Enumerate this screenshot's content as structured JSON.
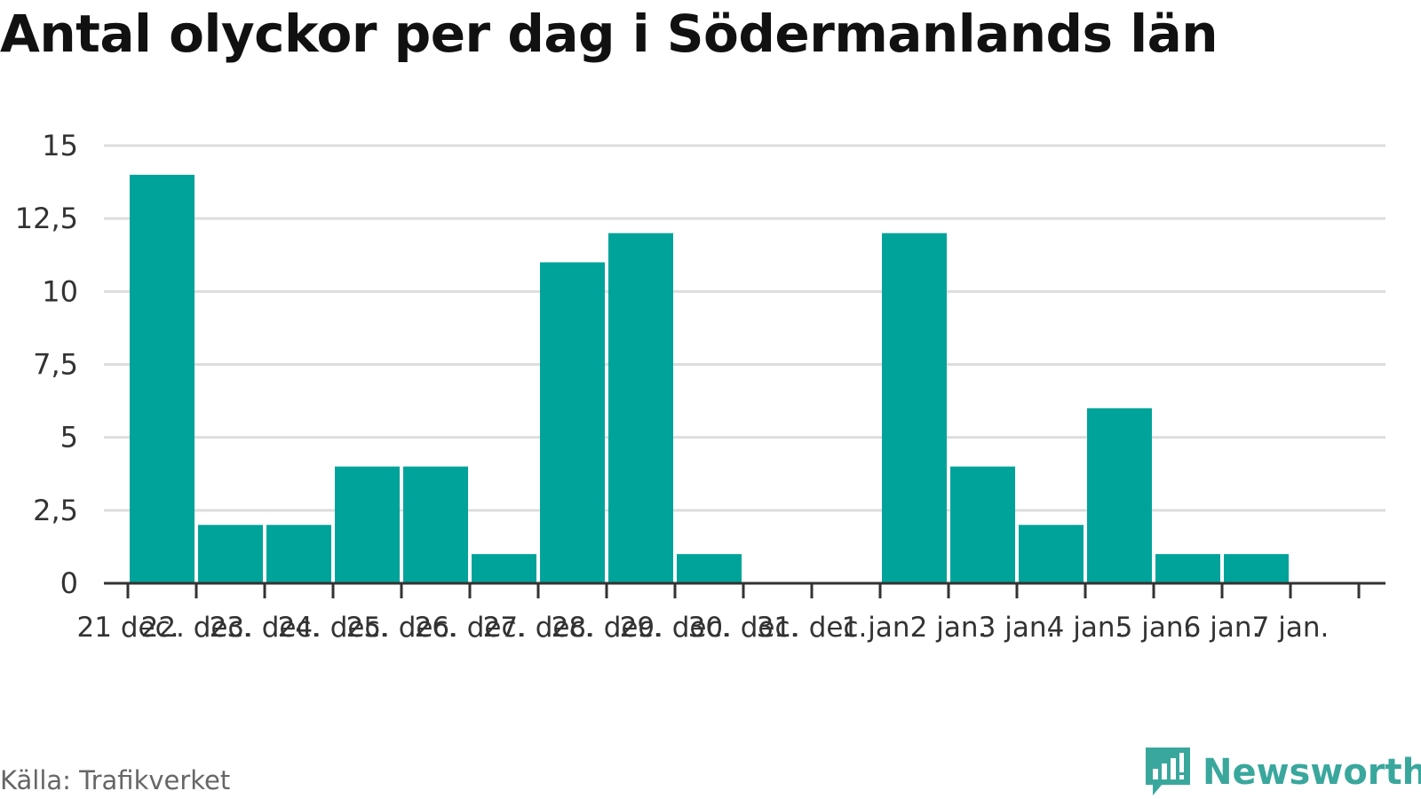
{
  "title": "Antal olyckor per dag i Södermanlands län",
  "source": "Källa: Trafikverket",
  "brand": "Newsworthy",
  "colors": {
    "bar": "#00a39a",
    "grid": "#dddddd",
    "axis": "#333333",
    "brand": "#3aa79d"
  },
  "chart_data": {
    "type": "bar",
    "categories": [
      "21 dec.",
      "22. dec.",
      "23. dec.",
      "24. dec.",
      "25. dec.",
      "26. dec.",
      "27. dec.",
      "28. dec.",
      "29. dec.",
      "30. dec.",
      "31. dec.",
      "1 jan.",
      "2 jan.",
      "3 jan.",
      "4 jan.",
      "5 jan.",
      "6 jan.",
      "7 jan."
    ],
    "values": [
      14,
      2,
      2,
      4,
      4,
      1,
      11,
      12,
      1,
      0,
      0,
      12,
      4,
      2,
      6,
      1,
      1,
      null
    ],
    "y_ticks": [
      "0",
      "2,5",
      "5",
      "7,5",
      "10",
      "12,5",
      "15"
    ],
    "ylim": [
      0,
      15
    ],
    "grid": true,
    "legend": "none"
  }
}
